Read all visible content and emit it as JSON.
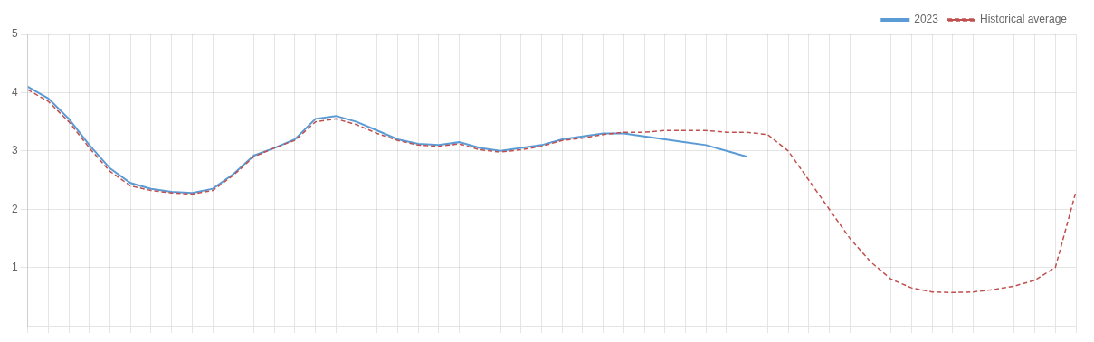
{
  "chart_data": {
    "type": "line",
    "x": [
      0,
      1,
      2,
      3,
      4,
      5,
      6,
      7,
      8,
      9,
      10,
      11,
      12,
      13,
      14,
      15,
      16,
      17,
      18,
      19,
      20,
      21,
      22,
      23,
      24,
      25,
      26,
      27,
      28,
      29,
      30,
      31,
      32,
      33,
      34,
      35,
      36,
      37,
      38,
      39,
      40,
      41,
      42,
      43,
      44,
      45,
      46,
      47,
      48,
      49,
      50,
      51
    ],
    "series": [
      {
        "name": "Historical average",
        "color": "#c0504d",
        "line_style": "dashed",
        "values": [
          4.05,
          3.85,
          3.5,
          3.05,
          2.65,
          2.4,
          2.32,
          2.28,
          2.26,
          2.32,
          2.58,
          2.9,
          3.05,
          3.18,
          3.5,
          3.55,
          3.45,
          3.3,
          3.18,
          3.1,
          3.08,
          3.12,
          3.02,
          2.98,
          3.02,
          3.08,
          3.18,
          3.22,
          3.28,
          3.32,
          3.32,
          3.35,
          3.35,
          3.35,
          3.32,
          3.32,
          3.28,
          3.0,
          2.5,
          2.0,
          1.5,
          1.1,
          0.8,
          0.65,
          0.58,
          0.57,
          0.58,
          0.62,
          0.68,
          0.78,
          1.0,
          2.3
        ]
      },
      {
        "name": "2023",
        "color": "#5b9bd5",
        "line_style": "solid",
        "values": [
          4.1,
          3.9,
          3.55,
          3.1,
          2.7,
          2.45,
          2.35,
          2.3,
          2.28,
          2.35,
          2.6,
          2.92,
          3.05,
          3.2,
          3.55,
          3.6,
          3.5,
          3.35,
          3.2,
          3.12,
          3.1,
          3.15,
          3.05,
          3.0,
          3.05,
          3.1,
          3.2,
          3.25,
          3.3,
          3.3,
          3.25,
          3.2,
          3.15,
          3.1,
          3.0,
          2.9,
          null,
          null,
          null,
          null,
          null,
          null,
          null,
          null,
          null,
          null,
          null,
          null,
          null,
          null,
          null,
          null
        ]
      }
    ],
    "xlim": [
      0,
      51
    ],
    "xticks": [
      0,
      1,
      2,
      3,
      4,
      5,
      6,
      7,
      8,
      9,
      10,
      11,
      12,
      13,
      14,
      15,
      16,
      17,
      18,
      19,
      20,
      21,
      22,
      23,
      24,
      25,
      26,
      27,
      28,
      29,
      30,
      31,
      32,
      33,
      34,
      35,
      36,
      37,
      38,
      39,
      40,
      41,
      42,
      43,
      44,
      45,
      46,
      47,
      48,
      49,
      50,
      51
    ],
    "ylim": [
      0,
      5
    ],
    "yticks": [
      1,
      2,
      3,
      4,
      5
    ],
    "grid": true,
    "legend": "upper right",
    "tick_labels": "y"
  }
}
